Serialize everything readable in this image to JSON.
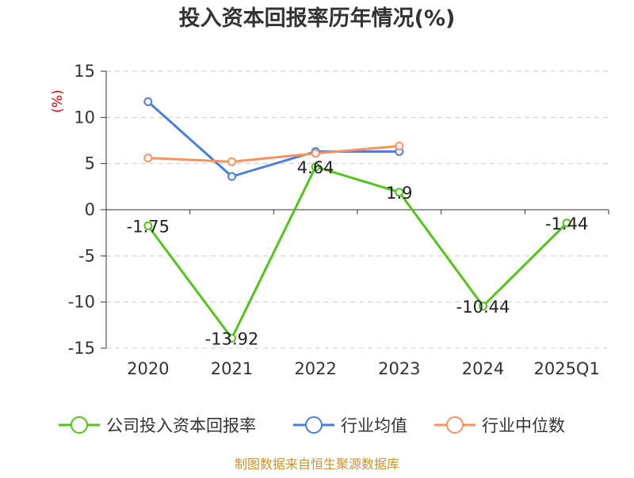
{
  "chart_data": {
    "type": "line",
    "title": "投入资本回报率历年情况(%)",
    "ylabel": "(%)",
    "xlabel": "",
    "categories": [
      "2020",
      "2021",
      "2022",
      "2023",
      "2024",
      "2025Q1"
    ],
    "ylim": [
      -15,
      15
    ],
    "yticks": [
      15,
      10,
      5,
      0,
      -5,
      -10,
      -15
    ],
    "ytick_labels": [
      "15",
      "10",
      "5",
      "0",
      "-5",
      "-10",
      "-15"
    ],
    "grid": true,
    "legend_position": "bottom",
    "series": [
      {
        "name": "公司投入资本回报率",
        "color": "#52c41a",
        "values": [
          -1.75,
          -13.92,
          4.64,
          1.9,
          -10.44,
          -1.44
        ],
        "labels": [
          "-1.75",
          "-13.92",
          "4.64",
          "1.9",
          "-10.44",
          "-1.44"
        ]
      },
      {
        "name": "行业均值",
        "color": "#4a7fdc",
        "values": [
          11.7,
          3.6,
          6.3,
          6.3,
          null,
          null
        ]
      },
      {
        "name": "行业中位数",
        "color": "#f79360",
        "values": [
          5.6,
          5.2,
          6.1,
          6.9,
          null,
          null
        ]
      }
    ]
  },
  "source": "制图数据来自恒生聚源数据库"
}
